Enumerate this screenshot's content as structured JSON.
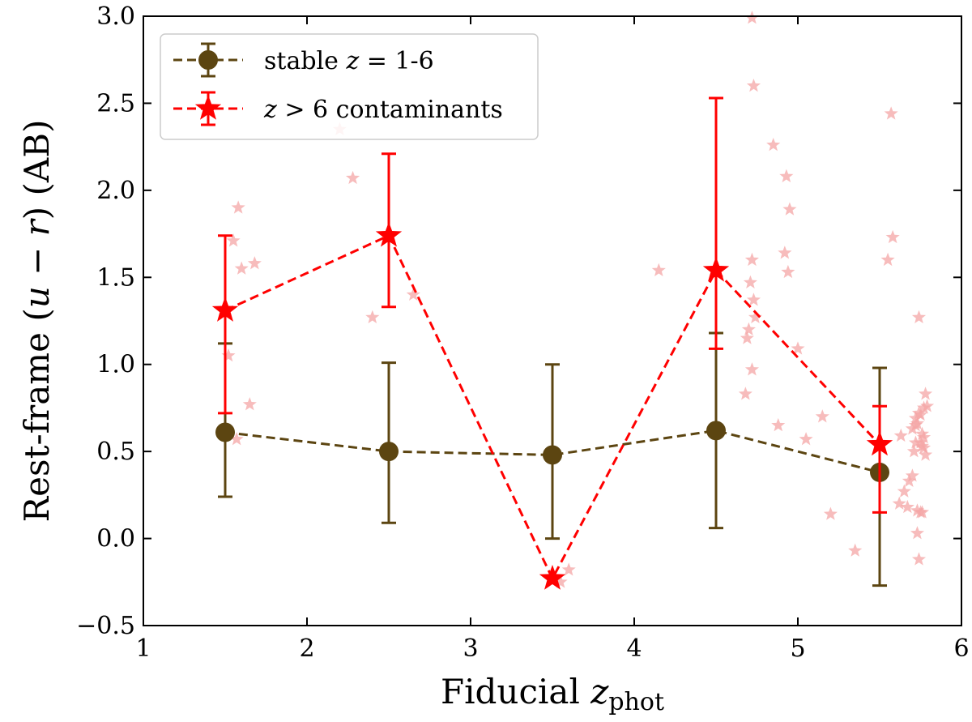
{
  "chart_data": {
    "type": "scatter",
    "title": "",
    "xlabel": "Fiducial z_phot",
    "xlabel_main": "Fiducial ",
    "xlabel_var": "z",
    "xlabel_sub": "phot",
    "ylabel": "Rest-frame (u − r) (AB)",
    "ylabel_pre": "Rest-frame (",
    "ylabel_u": "u",
    "ylabel_minus": " − ",
    "ylabel_r": "r",
    "ylabel_post": ") (AB)",
    "xlim": [
      1,
      6
    ],
    "ylim": [
      -0.5,
      3.0
    ],
    "xticks": [
      1,
      2,
      3,
      4,
      5,
      6
    ],
    "xtick_labels": [
      "1",
      "2",
      "3",
      "4",
      "5",
      "6"
    ],
    "yticks": [
      -0.5,
      0.0,
      0.5,
      1.0,
      1.5,
      2.0,
      2.5,
      3.0
    ],
    "ytick_labels": [
      "−0.5",
      "0.0",
      "0.5",
      "1.0",
      "1.5",
      "2.0",
      "2.5",
      "3.0"
    ],
    "grid": false,
    "legend_position": "top-left",
    "series": [
      {
        "name": "stable z = 1-6",
        "legend_pre": "stable ",
        "legend_var": "z",
        "legend_post": " = 1-6",
        "color": "#5c4511",
        "marker": "circle",
        "linestyle": "dashed",
        "x": [
          1.5,
          2.5,
          3.5,
          4.5,
          5.5
        ],
        "y": [
          0.61,
          0.5,
          0.48,
          0.62,
          0.38
        ],
        "err_low": [
          0.24,
          0.09,
          0.0,
          0.06,
          -0.27
        ],
        "err_high": [
          1.12,
          1.01,
          1.0,
          1.18,
          0.98
        ]
      },
      {
        "name": "z > 6 contaminants",
        "legend_pre": "",
        "legend_var": "z",
        "legend_post": " > 6 contaminants",
        "color": "#ff0000",
        "marker": "star",
        "linestyle": "dashed",
        "x": [
          1.5,
          2.5,
          3.5,
          4.5,
          5.5
        ],
        "y": [
          1.31,
          1.74,
          -0.23,
          1.54,
          0.54
        ],
        "err_low": [
          0.72,
          1.33,
          -0.23,
          1.09,
          0.15
        ],
        "err_high": [
          1.74,
          2.21,
          -0.23,
          2.53,
          0.76
        ]
      }
    ],
    "scatter_points": {
      "name": "individual contaminants",
      "color": "#f4a6a6",
      "marker": "star",
      "x": [
        1.52,
        1.55,
        1.58,
        1.6,
        1.65,
        1.68,
        1.57,
        2.2,
        2.28,
        2.4,
        2.65,
        3.55,
        3.6,
        4.15,
        4.68,
        4.7,
        4.72,
        4.73,
        4.72,
        4.71,
        4.73,
        4.69,
        4.72,
        4.74,
        4.85,
        4.88,
        4.93,
        4.95,
        4.92,
        4.94,
        5.0,
        5.05,
        5.15,
        5.2,
        5.35,
        5.55,
        5.57,
        5.58,
        5.62,
        5.63,
        5.65,
        5.67,
        5.68,
        5.7,
        5.7,
        5.71,
        5.72,
        5.72,
        5.73,
        5.73,
        5.74,
        5.75,
        5.75,
        5.76,
        5.76,
        5.77,
        5.77,
        5.78,
        5.78,
        5.74,
        5.73,
        5.76,
        5.79,
        5.72,
        5.77,
        5.75,
        5.74
      ],
      "y": [
        1.05,
        1.71,
        1.9,
        1.55,
        0.77,
        1.58,
        0.57,
        2.35,
        2.07,
        1.27,
        1.4,
        -0.25,
        -0.18,
        1.54,
        0.83,
        1.2,
        2.99,
        2.6,
        1.6,
        1.47,
        1.37,
        1.15,
        0.97,
        1.27,
        2.26,
        0.65,
        2.08,
        1.89,
        1.64,
        1.53,
        1.09,
        0.57,
        0.7,
        0.14,
        -0.07,
        1.6,
        2.44,
        1.73,
        0.2,
        0.59,
        0.27,
        0.18,
        0.33,
        0.63,
        0.36,
        0.5,
        0.55,
        0.65,
        0.16,
        0.03,
        -0.12,
        0.71,
        0.55,
        0.6,
        0.15,
        0.75,
        0.52,
        0.48,
        0.83,
        1.27,
        0.66,
        0.53,
        0.76,
        0.69,
        0.58,
        0.15,
        0.72
      ]
    }
  }
}
